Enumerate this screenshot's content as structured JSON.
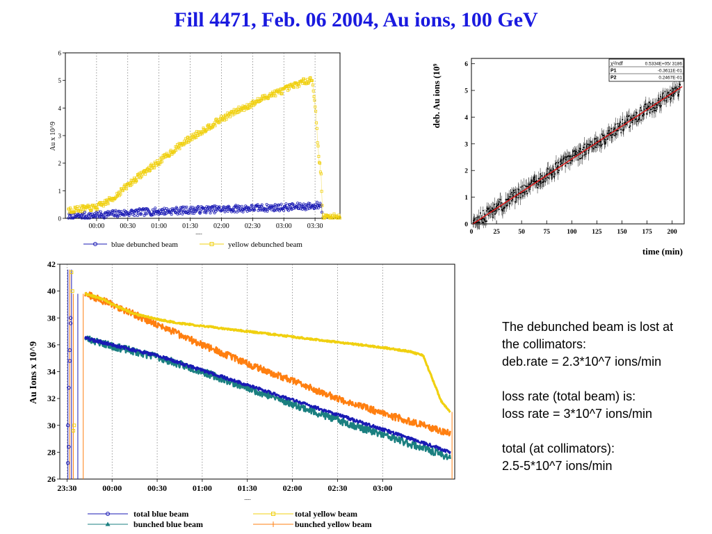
{
  "page_title": "Fill 4471, Feb. 06 2004, Au ions, 100 GeV",
  "notes": {
    "line1": "The debunched beam is lost at",
    "line2": "the collimators:",
    "line3": "deb.rate = 2.3*10^7 ions/min",
    "line4": "loss rate (total beam) is:",
    "line5": "loss rate = 3*10^7 ions/min",
    "line6": "total (at collimators):",
    "line7": "2.5-5*10^7 ions/min"
  },
  "colors": {
    "blue": "#1a1ab4",
    "yellow": "#f0d010",
    "teal": "#1a7f80",
    "orange": "#ff7f10",
    "red": "#e01010",
    "title": "#1a1adf"
  },
  "chart_data": [
    {
      "id": "debunched",
      "type": "scatter",
      "ylabel": "Au x 10^9",
      "xlabel": "----",
      "x_ticks": [
        "00:00",
        "00:30",
        "01:00",
        "01:30",
        "02:00",
        "02:30",
        "03:00",
        "03:30"
      ],
      "x_tick_hours": [
        0,
        0.5,
        1,
        1.5,
        2,
        2.5,
        3,
        3.5
      ],
      "xlim": [
        -0.5,
        3.9
      ],
      "ylim": [
        0,
        6
      ],
      "y_ticks": [
        0,
        1,
        2,
        3,
        4,
        5,
        6
      ],
      "legend": [
        "blue debunched beam",
        "yellow debunched beam"
      ],
      "series": [
        {
          "name": "blue debunched beam",
          "color": "#1a1ab4",
          "x": [
            -0.45,
            0,
            0.5,
            1,
            1.5,
            2,
            2.5,
            3,
            3.5,
            3.6,
            3.62
          ],
          "y": [
            0.05,
            0.12,
            0.2,
            0.25,
            0.3,
            0.33,
            0.37,
            0.4,
            0.45,
            0.5,
            0.02
          ]
        },
        {
          "name": "yellow debunched beam",
          "color": "#f0d010",
          "x": [
            -0.45,
            0,
            0.25,
            0.5,
            0.75,
            1,
            1.25,
            1.5,
            1.75,
            2,
            2.25,
            2.5,
            2.75,
            3,
            3.25,
            3.45,
            3.5,
            3.55,
            3.6,
            3.62,
            3.9
          ],
          "y": [
            0.3,
            0.4,
            0.7,
            1.2,
            1.65,
            2.05,
            2.5,
            2.9,
            3.25,
            3.6,
            3.9,
            4.15,
            4.45,
            4.65,
            4.9,
            5.05,
            4.2,
            2.5,
            1.5,
            0.05,
            0.05
          ]
        }
      ]
    },
    {
      "id": "fit",
      "type": "scatter",
      "ylabel": "deb. Au ions (10^9)",
      "ylabel_visible": "deb. Au ions (10⁹",
      "xlabel": "time (min)",
      "xlim": [
        0,
        212
      ],
      "ylim": [
        0,
        6.2
      ],
      "x_ticks": [
        0,
        25,
        50,
        75,
        100,
        125,
        150,
        175,
        200
      ],
      "y_ticks": [
        0,
        1,
        2,
        3,
        4,
        5,
        6
      ],
      "fit": {
        "p1": -0.03611,
        "p2": 0.02467
      },
      "stats": [
        {
          "label": "χ²/ndf",
          "value": "0.5334E+05/ 3186"
        },
        {
          "label": "P1",
          "value": "-0.3611E-01"
        },
        {
          "label": "P2",
          "value": "0.2467E-01"
        }
      ]
    },
    {
      "id": "total",
      "type": "line",
      "ylabel": "Au Ions x 10^9",
      "xlabel": "----",
      "x_ticks": [
        "23:30",
        "00:00",
        "00:30",
        "01:00",
        "01:30",
        "02:00",
        "02:30",
        "03:00"
      ],
      "x_tick_hours": [
        -0.5,
        0,
        0.5,
        1,
        1.5,
        2,
        2.5,
        3
      ],
      "xlim": [
        -0.58,
        3.8
      ],
      "ylim": [
        26,
        42
      ],
      "y_ticks": [
        26,
        28,
        30,
        32,
        34,
        36,
        38,
        40,
        42
      ],
      "legend": [
        "total blue beam",
        "total yellow beam",
        "bunched blue beam",
        "bunched yellow beam"
      ],
      "series": [
        {
          "name": "total blue beam",
          "color": "#1a1ab4",
          "x": [
            -0.3,
            0,
            0.5,
            1,
            1.5,
            2,
            2.5,
            3,
            3.5,
            3.75
          ],
          "y": [
            36.5,
            36.0,
            35.2,
            34.1,
            33.0,
            31.9,
            30.8,
            29.7,
            28.6,
            28.0
          ]
        },
        {
          "name": "total yellow beam",
          "color": "#f0d010",
          "x": [
            -0.3,
            -0.1,
            0,
            0.25,
            0.5,
            0.75,
            1,
            1.5,
            2,
            2.5,
            3,
            3.3,
            3.45,
            3.55,
            3.65,
            3.75
          ],
          "y": [
            39.8,
            39.4,
            39.0,
            38.3,
            37.9,
            37.6,
            37.4,
            37.0,
            36.6,
            36.2,
            35.8,
            35.5,
            35.2,
            33.5,
            31.8,
            31.0
          ]
        },
        {
          "name": "bunched blue beam",
          "color": "#1a7f80",
          "x": [
            -0.3,
            0,
            0.5,
            1,
            1.5,
            2,
            2.5,
            3,
            3.5,
            3.75
          ],
          "y": [
            36.5,
            35.9,
            35.1,
            34.0,
            32.8,
            31.6,
            30.4,
            29.3,
            28.2,
            27.6
          ]
        },
        {
          "name": "bunched yellow beam",
          "color": "#ff7f10",
          "x": [
            -0.3,
            0,
            0.5,
            1,
            1.5,
            2,
            2.5,
            3,
            3.5,
            3.75
          ],
          "y": [
            39.8,
            39.0,
            37.5,
            36.0,
            34.6,
            33.3,
            32.0,
            30.9,
            29.9,
            29.4
          ]
        }
      ]
    }
  ]
}
